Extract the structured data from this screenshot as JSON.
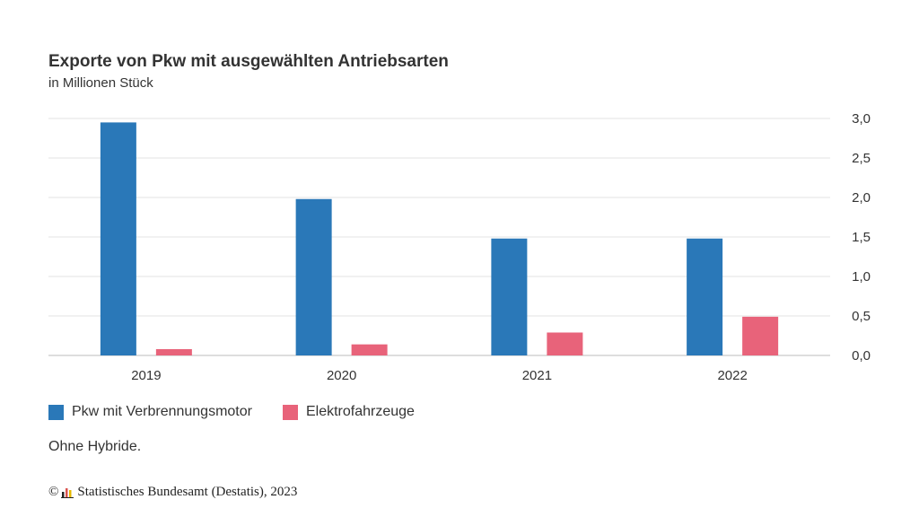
{
  "chart_data": {
    "type": "bar",
    "title": "Exporte von Pkw mit ausgewählten Antriebsarten",
    "subtitle": "in Millionen Stück",
    "categories": [
      "2019",
      "2020",
      "2021",
      "2022"
    ],
    "series": [
      {
        "name": "Pkw mit Verbrennungsmotor",
        "values": [
          2.95,
          1.98,
          1.48,
          1.48
        ],
        "color": "#2a78b8"
      },
      {
        "name": "Elektrofahrzeuge",
        "values": [
          0.08,
          0.14,
          0.29,
          0.49
        ],
        "color": "#e8637a"
      }
    ],
    "ylim": [
      0,
      3
    ],
    "yticks": [
      "0,0",
      "0,5",
      "1,0",
      "1,5",
      "2,0",
      "2,5",
      "3,0"
    ],
    "y_axis_side": "right",
    "grid": true,
    "legend_position": "bottom-left"
  },
  "note": "Ohne Hybride.",
  "credit": {
    "copyright_symbol": "©",
    "text": "Statistisches Bundesamt (Destatis), 2023"
  }
}
